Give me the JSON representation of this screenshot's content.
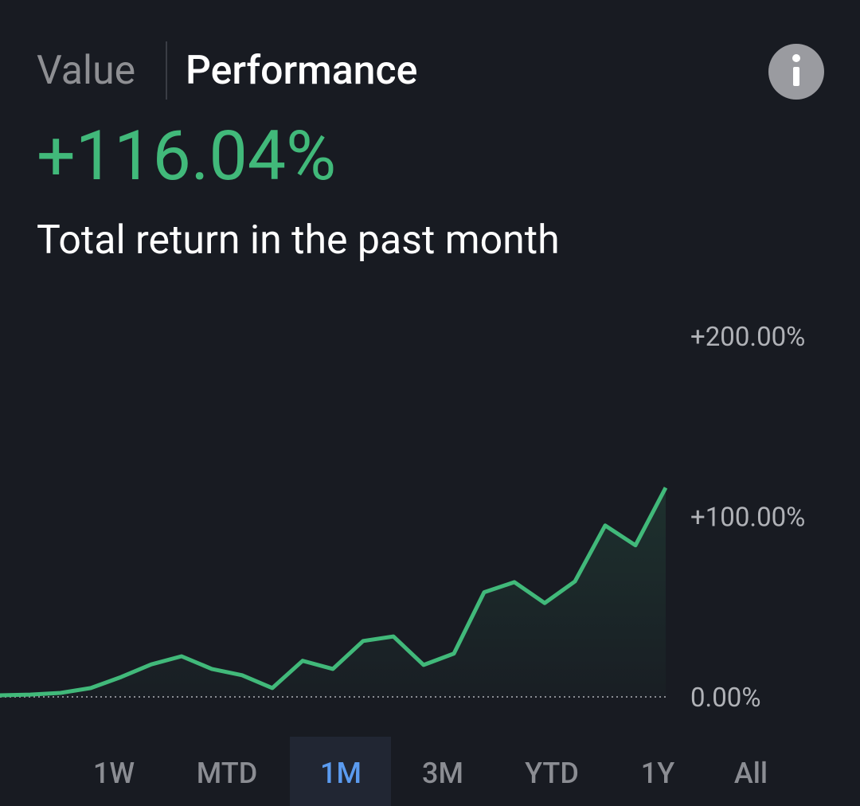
{
  "header": {
    "tabs": [
      "Value",
      "Performance"
    ],
    "active": 1
  },
  "summary": {
    "return": "+116.04%",
    "caption": "Total return in the past month"
  },
  "chart_data": {
    "type": "line",
    "categories": [
      null,
      null,
      null,
      null,
      null,
      null,
      null,
      null,
      null,
      null,
      null,
      null,
      null,
      null,
      null,
      null,
      null,
      null,
      null,
      null,
      null,
      null,
      null
    ],
    "values": [
      0.9,
      1.3,
      2.2,
      4.9,
      11,
      18,
      22.5,
      15.5,
      12,
      4.9,
      20,
      15.5,
      31,
      33.5,
      17.7,
      24,
      58,
      63.6,
      52,
      64,
      95,
      84,
      116
    ],
    "color": "#41b97a",
    "area": true,
    "ylim": [
      0,
      200
    ],
    "yticks": [
      {
        "value": 200,
        "label": "+200.00%"
      },
      {
        "value": 100,
        "label": "+100.00%"
      },
      {
        "value": 0,
        "label": "0.00%"
      }
    ]
  },
  "range_tabs": {
    "options": [
      "1W",
      "MTD",
      "1M",
      "3M",
      "YTD",
      "1Y",
      "All"
    ],
    "selected": 2
  }
}
